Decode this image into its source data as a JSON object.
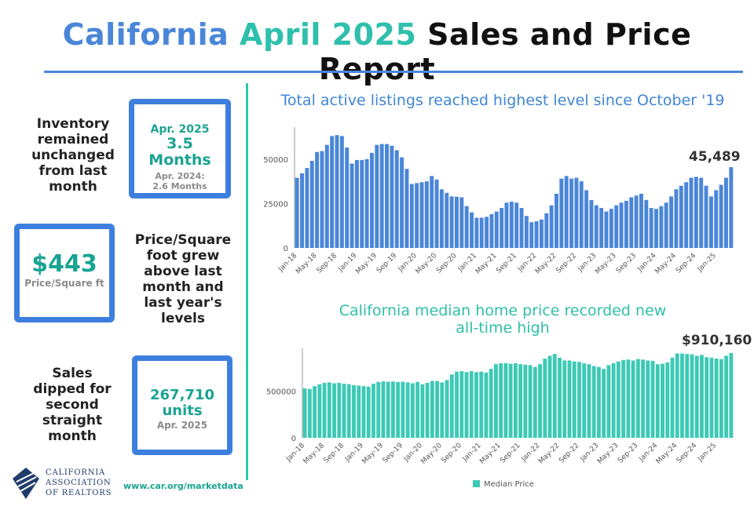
{
  "header": {
    "title_part1": "California",
    "title_part2": "April 2025",
    "title_part3": "Sales and Price Report",
    "color_part1": "#4a86d8",
    "color_part2": "#2fc0ad",
    "color_part3": "#111111"
  },
  "cards": {
    "inventory": {
      "side_text": [
        "Inventory",
        "remained",
        "unchanged",
        "from last",
        "month"
      ],
      "line1": "Apr. 2025",
      "line2": "3.5 Months",
      "line3": "Apr. 2024:",
      "line4": "2.6 Months"
    },
    "price_sqft": {
      "value": "$443",
      "unit": "Price/Square ft",
      "side_text": [
        "Price/Square",
        "foot grew",
        "above last",
        "month and",
        "last year's",
        "levels"
      ]
    },
    "sales": {
      "side_text": [
        "Sales",
        "dipped for",
        "second",
        "straight",
        "month"
      ],
      "value": "267,710",
      "unit": "units",
      "period": "Apr. 2025"
    }
  },
  "footer": {
    "url": "www.car.org/marketdata",
    "org_line1": "CALIFORNIA",
    "org_line2": "ASSOCIATION",
    "org_line3": "OF REALTORS"
  },
  "colors": {
    "border_blue": "#3d7fde",
    "bar_blue": "#4a86d8",
    "bar_teal": "#3dc9b5",
    "teal_text": "#1aa392",
    "title_blue": "#3f86d4",
    "title_teal": "#2fbfa8"
  },
  "chart_data": [
    {
      "type": "bar",
      "title": "Total active listings reached highest level since October '19",
      "callout": "45,489",
      "x_tick_labels": [
        "Jan-18",
        "May-18",
        "Sep-18",
        "Jan-19",
        "May-19",
        "Sep-19",
        "Jan-20",
        "May-20",
        "Sep-20",
        "Jan-21",
        "May-21",
        "Sep-21",
        "Jan-22",
        "May-22",
        "Sep-22",
        "Jan-23",
        "May-23",
        "Sep-23",
        "Jan-24",
        "May-24",
        "Sep-24",
        "Jan-25"
      ],
      "y_ticks": [
        0,
        25000,
        50000
      ],
      "ylim": [
        0,
        68000
      ],
      "grid": false,
      "values": [
        39500,
        42000,
        45000,
        49000,
        54000,
        54500,
        58000,
        63000,
        63500,
        63000,
        56500,
        47500,
        49500,
        49500,
        50000,
        53500,
        58000,
        58500,
        58500,
        57500,
        55000,
        51000,
        44500,
        36000,
        36500,
        37000,
        37500,
        40500,
        38500,
        33000,
        31000,
        29000,
        28800,
        28500,
        23500,
        20000,
        17000,
        17000,
        17500,
        19000,
        20500,
        22500,
        25500,
        26000,
        25500,
        22500,
        18000,
        14500,
        15000,
        16000,
        19500,
        24000,
        30500,
        39000,
        40500,
        39000,
        39500,
        37500,
        32500,
        27000,
        24000,
        22500,
        20500,
        22000,
        24000,
        25500,
        26500,
        28500,
        29500,
        30500,
        27000,
        22500,
        22000,
        23500,
        25500,
        29000,
        33000,
        35000,
        37000,
        39500,
        40000,
        39500,
        35000,
        29000,
        32500,
        35500,
        39500,
        45489
      ]
    },
    {
      "type": "bar",
      "title": "California median home price recorded new all-time high",
      "title_lines": [
        "California median home price recorded new",
        "all-time high"
      ],
      "callout": "$910,160",
      "x_tick_labels": [
        "Jan-18",
        "May-18",
        "Sep-18",
        "Jan-19",
        "May-19",
        "Sep-19",
        "Jan-20",
        "May-20",
        "Sep-20",
        "Jan-21",
        "May-21",
        "Sep-21",
        "Jan-22",
        "May-22",
        "Sep-22",
        "Jan-23",
        "May-23",
        "Sep-23",
        "Jan-24",
        "May-24",
        "Sep-24",
        "Jan-25"
      ],
      "y_ticks": [
        0,
        500000
      ],
      "ylim": [
        0,
        960000
      ],
      "grid": false,
      "legend": [
        "Median Price"
      ],
      "legend_position": "bottom",
      "values": [
        530000,
        525000,
        555000,
        575000,
        590000,
        595000,
        585000,
        590000,
        580000,
        575000,
        565000,
        560000,
        555000,
        550000,
        580000,
        600000,
        605000,
        602000,
        605000,
        600000,
        602000,
        595000,
        585000,
        600000,
        575000,
        590000,
        610000,
        610000,
        595000,
        620000,
        680000,
        710000,
        715000,
        705000,
        715000,
        705000,
        710000,
        700000,
        740000,
        790000,
        800000,
        800000,
        795000,
        800000,
        790000,
        785000,
        780000,
        760000,
        790000,
        850000,
        880000,
        900000,
        860000,
        830000,
        830000,
        820000,
        815000,
        800000,
        790000,
        770000,
        760000,
        740000,
        780000,
        800000,
        820000,
        835000,
        840000,
        830000,
        845000,
        840000,
        830000,
        825000,
        790000,
        795000,
        810000,
        860000,
        905000,
        905000,
        900000,
        895000,
        880000,
        890000,
        865000,
        860000,
        850000,
        845000,
        880000,
        910160
      ]
    }
  ]
}
